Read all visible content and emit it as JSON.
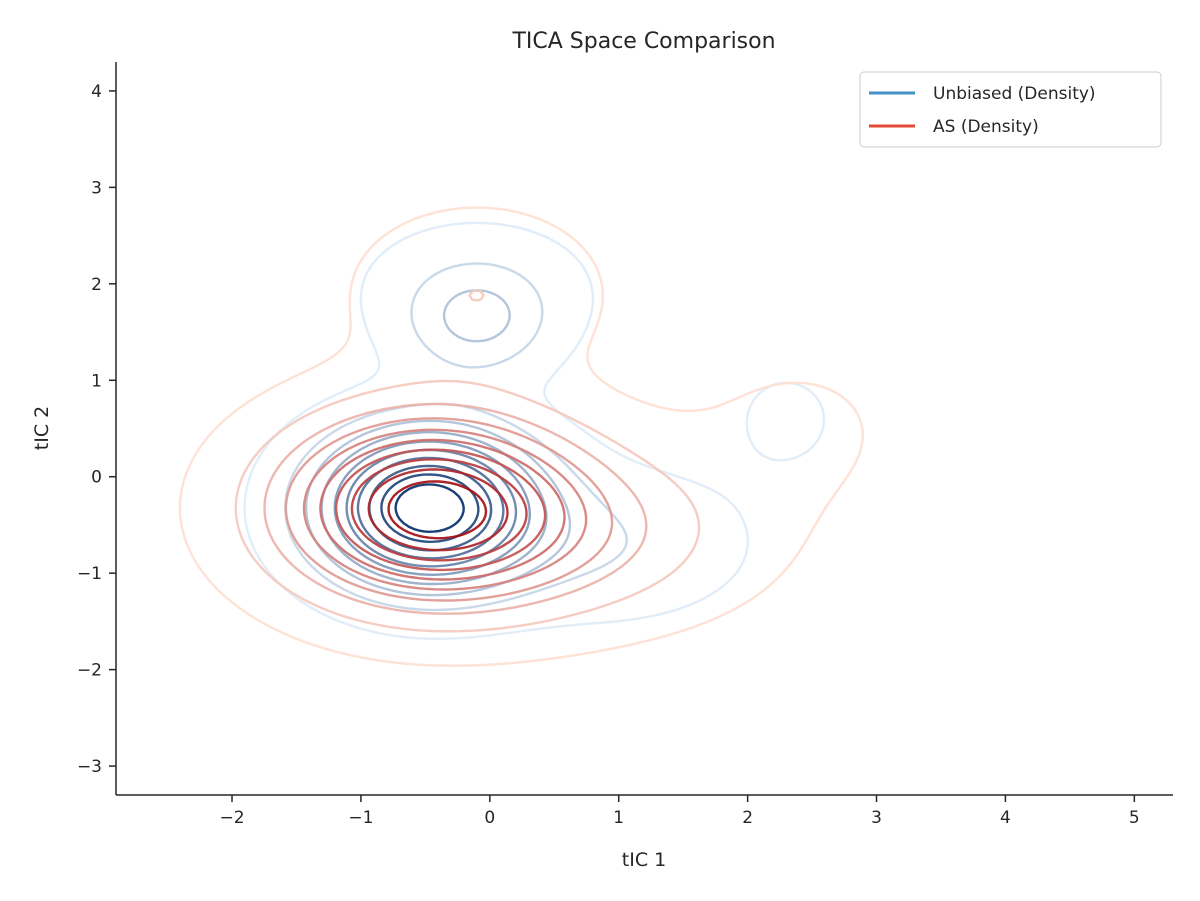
{
  "chart_data": {
    "type": "contour",
    "title": "TICA Space Comparison",
    "xlabel": "tIC 1",
    "ylabel": "tIC 2",
    "xlim": [
      -2.9,
      5.3
    ],
    "ylim": [
      -3.3,
      4.3
    ],
    "xticks": [
      -2,
      -1,
      0,
      1,
      2,
      3,
      4,
      5
    ],
    "yticks": [
      -3,
      -2,
      -1,
      0,
      1,
      2,
      3,
      4
    ],
    "xtick_labels": [
      "−2",
      "−1",
      "0",
      "1",
      "2",
      "3",
      "4",
      "5"
    ],
    "ytick_labels": [
      "−3",
      "−2",
      "−1",
      "0",
      "1",
      "2",
      "3",
      "4"
    ],
    "grid": false,
    "legend_position": "top-right",
    "series": [
      {
        "name": "Unbiased (Density)",
        "legend_color": "#4292c6",
        "peak": [
          -0.48,
          -0.32
        ],
        "levels": 10,
        "color_light": "#deebf7",
        "color_dark": "#08306b",
        "components": [
          {
            "mu": [
              -0.48,
              -0.32
            ],
            "sigma": [
              0.55,
              0.52
            ],
            "w": 1.0
          },
          {
            "mu": [
              -0.1,
              1.6
            ],
            "sigma": [
              0.38,
              0.38
            ],
            "w": 0.22
          },
          {
            "mu": [
              -0.1,
              2.0
            ],
            "sigma": [
              0.6,
              0.45
            ],
            "w": 0.08
          },
          {
            "mu": [
              0.9,
              -0.7
            ],
            "sigma": [
              0.7,
              0.5
            ],
            "w": 0.12
          },
          {
            "mu": [
              2.3,
              0.6
            ],
            "sigma": [
              0.35,
              0.45
            ],
            "w": 0.05
          }
        ]
      },
      {
        "name": "AS (Density)",
        "legend_color": "#e34a33",
        "peak": [
          -0.48,
          -0.32
        ],
        "levels": 10,
        "color_light": "#fee0d2",
        "color_dark": "#a50f15",
        "components": [
          {
            "mu": [
              -0.48,
              -0.32
            ],
            "sigma": [
              0.75,
              0.62
            ],
            "w": 1.0
          },
          {
            "mu": [
              -0.1,
              1.9
            ],
            "sigma": [
              0.6,
              0.55
            ],
            "w": 0.14
          },
          {
            "mu": [
              0.7,
              -0.6
            ],
            "sigma": [
              0.9,
              0.6
            ],
            "w": 0.2
          },
          {
            "mu": [
              2.4,
              0.5
            ],
            "sigma": [
              0.6,
              0.6
            ],
            "w": 0.05
          }
        ]
      }
    ]
  }
}
